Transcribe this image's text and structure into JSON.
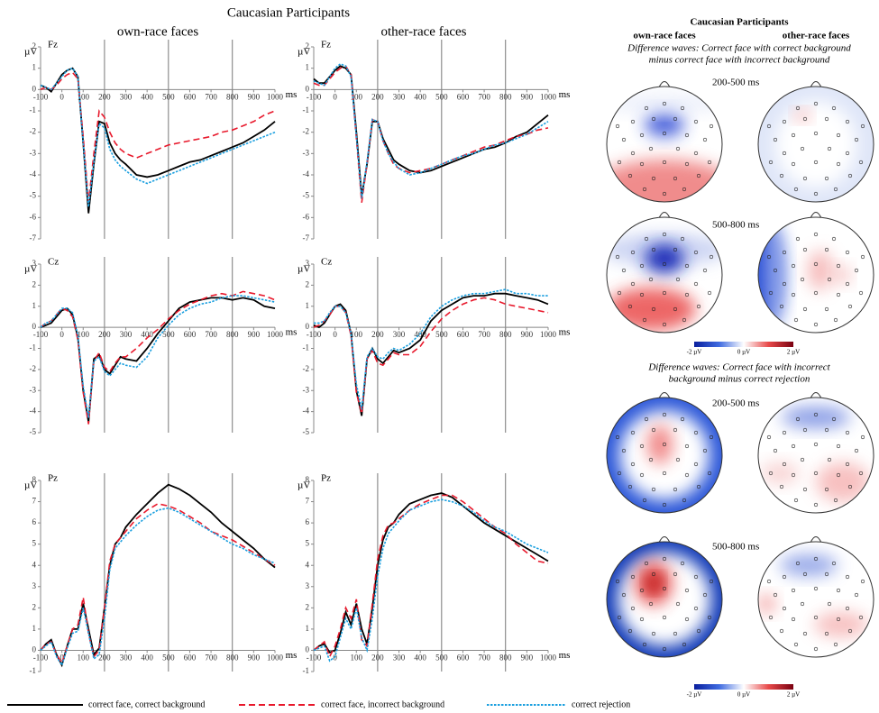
{
  "figure_title": "Caucasian Participants",
  "columns": [
    "own-race faces",
    "other-race faces"
  ],
  "chart_data": [
    {
      "type": "line",
      "title": "Fz",
      "ylabel": "µV",
      "xlabel": "ms",
      "xlim": [
        -100,
        1000
      ],
      "ylim": [
        -7,
        2
      ],
      "xticks": [
        -100,
        0,
        100,
        200,
        300,
        400,
        500,
        600,
        700,
        800,
        900,
        1000
      ],
      "yticks": [
        -7,
        -6,
        -5,
        -4,
        -3,
        -2,
        -1,
        0,
        1,
        2
      ],
      "vlines": [
        200,
        500,
        800
      ],
      "x": [
        -100,
        -75,
        -50,
        -25,
        0,
        25,
        50,
        75,
        100,
        125,
        150,
        175,
        200,
        225,
        250,
        275,
        300,
        350,
        400,
        450,
        500,
        550,
        600,
        650,
        700,
        750,
        800,
        850,
        900,
        950,
        1000
      ],
      "series": [
        {
          "name": "correct face, correct background",
          "color": "#000000",
          "dash": "solid",
          "values": [
            0.2,
            0.1,
            -0.1,
            0.3,
            0.7,
            0.9,
            1.0,
            0.6,
            -2.5,
            -5.8,
            -3.5,
            -1.5,
            -1.6,
            -2.5,
            -3.0,
            -3.3,
            -3.5,
            -4.0,
            -4.1,
            -4.0,
            -3.8,
            -3.6,
            -3.4,
            -3.3,
            -3.1,
            -2.9,
            -2.7,
            -2.5,
            -2.2,
            -1.9,
            -1.5
          ]
        },
        {
          "name": "correct face, incorrect background",
          "color": "#e8192c",
          "dash": "dashed",
          "values": [
            0.0,
            0.1,
            0.0,
            0.2,
            0.5,
            0.7,
            0.8,
            0.5,
            -2.2,
            -5.3,
            -3.0,
            -1.0,
            -1.3,
            -2.0,
            -2.5,
            -2.8,
            -3.0,
            -3.2,
            -3.0,
            -2.8,
            -2.6,
            -2.5,
            -2.4,
            -2.3,
            -2.2,
            -2.0,
            -1.9,
            -1.7,
            -1.5,
            -1.2,
            -1.0
          ]
        },
        {
          "name": "correct rejection",
          "color": "#1a9fdf",
          "dash": "dotted",
          "values": [
            0.2,
            0.1,
            0.0,
            0.3,
            0.6,
            0.9,
            1.0,
            0.6,
            -2.5,
            -5.5,
            -3.4,
            -1.6,
            -1.8,
            -2.8,
            -3.3,
            -3.6,
            -3.8,
            -4.2,
            -4.4,
            -4.2,
            -4.0,
            -3.8,
            -3.6,
            -3.4,
            -3.2,
            -3.0,
            -2.8,
            -2.6,
            -2.4,
            -2.2,
            -2.0
          ]
        }
      ]
    },
    {
      "type": "line",
      "title": "Fz",
      "ylabel": "µV",
      "xlabel": "ms",
      "xlim": [
        -100,
        1000
      ],
      "ylim": [
        -7,
        2
      ],
      "xticks": [
        -100,
        0,
        100,
        200,
        300,
        400,
        500,
        600,
        700,
        800,
        900,
        1000
      ],
      "yticks": [
        -7,
        -6,
        -5,
        -4,
        -3,
        -2,
        -1,
        0,
        1,
        2
      ],
      "vlines": [
        200,
        500,
        800
      ],
      "x": [
        -100,
        -75,
        -50,
        -25,
        0,
        25,
        50,
        75,
        100,
        125,
        150,
        175,
        200,
        225,
        250,
        275,
        300,
        350,
        400,
        450,
        500,
        550,
        600,
        650,
        700,
        750,
        800,
        850,
        900,
        950,
        1000
      ],
      "series": [
        {
          "name": "correct face, correct background",
          "color": "#000000",
          "dash": "solid",
          "values": [
            0.5,
            0.3,
            0.3,
            0.6,
            0.9,
            1.1,
            1.0,
            0.7,
            -2.0,
            -5.0,
            -3.5,
            -1.5,
            -1.5,
            -2.3,
            -2.8,
            -3.3,
            -3.5,
            -3.8,
            -3.9,
            -3.8,
            -3.6,
            -3.4,
            -3.2,
            -3.0,
            -2.8,
            -2.7,
            -2.5,
            -2.2,
            -2.0,
            -1.6,
            -1.2
          ]
        },
        {
          "name": "correct face, incorrect background",
          "color": "#e8192c",
          "dash": "dashed",
          "values": [
            0.3,
            0.2,
            0.2,
            0.5,
            0.8,
            1.0,
            1.1,
            0.7,
            -2.3,
            -5.3,
            -3.5,
            -1.4,
            -1.5,
            -2.4,
            -3.0,
            -3.5,
            -3.7,
            -3.9,
            -3.8,
            -3.7,
            -3.5,
            -3.3,
            -3.1,
            -2.9,
            -2.7,
            -2.6,
            -2.4,
            -2.2,
            -2.1,
            -1.9,
            -1.8
          ]
        },
        {
          "name": "correct rejection",
          "color": "#1a9fdf",
          "dash": "dotted",
          "values": [
            0.4,
            0.3,
            0.2,
            0.6,
            1.0,
            1.2,
            1.1,
            0.6,
            -2.2,
            -5.1,
            -3.4,
            -1.4,
            -1.5,
            -2.4,
            -3.0,
            -3.4,
            -3.7,
            -4.0,
            -3.9,
            -3.7,
            -3.5,
            -3.3,
            -3.1,
            -3.0,
            -2.8,
            -2.6,
            -2.5,
            -2.3,
            -2.1,
            -1.8,
            -1.5
          ]
        }
      ]
    },
    {
      "type": "line",
      "title": "Cz",
      "ylabel": "µV",
      "xlabel": "ms",
      "xlim": [
        -100,
        1000
      ],
      "ylim": [
        -5,
        3
      ],
      "xticks": [
        -100,
        0,
        100,
        200,
        300,
        400,
        500,
        600,
        700,
        800,
        900,
        1000
      ],
      "yticks": [
        -5,
        -4,
        -3,
        -2,
        -1,
        0,
        1,
        2,
        3
      ],
      "vlines": [
        200,
        500,
        800
      ],
      "x": [
        -100,
        -75,
        -50,
        -25,
        0,
        25,
        50,
        75,
        100,
        125,
        150,
        175,
        200,
        225,
        250,
        275,
        300,
        350,
        400,
        450,
        500,
        550,
        600,
        650,
        700,
        750,
        800,
        850,
        900,
        950,
        1000
      ],
      "series": [
        {
          "name": "correct face, correct background",
          "color": "#000000",
          "dash": "solid",
          "values": [
            0.0,
            0.1,
            0.2,
            0.5,
            0.8,
            0.9,
            0.6,
            -0.5,
            -3.0,
            -4.5,
            -1.5,
            -1.3,
            -2.0,
            -2.2,
            -1.8,
            -1.4,
            -1.5,
            -1.6,
            -1.0,
            -0.3,
            0.3,
            0.9,
            1.2,
            1.3,
            1.4,
            1.4,
            1.3,
            1.4,
            1.3,
            1.0,
            0.9
          ]
        },
        {
          "name": "correct face, incorrect background",
          "color": "#e8192c",
          "dash": "dashed",
          "values": [
            0.0,
            0.2,
            0.3,
            0.6,
            0.9,
            0.8,
            0.5,
            -0.6,
            -3.1,
            -4.6,
            -1.6,
            -1.2,
            -1.9,
            -2.1,
            -1.7,
            -1.4,
            -1.4,
            -1.0,
            -0.5,
            -0.1,
            0.4,
            0.8,
            1.1,
            1.3,
            1.5,
            1.6,
            1.5,
            1.7,
            1.6,
            1.5,
            1.3
          ]
        },
        {
          "name": "correct rejection",
          "color": "#1a9fdf",
          "dash": "dotted",
          "values": [
            0.0,
            0.2,
            0.3,
            0.6,
            0.9,
            0.9,
            0.7,
            -0.4,
            -2.8,
            -4.3,
            -1.6,
            -1.4,
            -2.1,
            -2.3,
            -2.0,
            -1.7,
            -1.8,
            -1.9,
            -1.4,
            -0.5,
            0.1,
            0.6,
            0.9,
            1.1,
            1.2,
            1.4,
            1.5,
            1.5,
            1.4,
            1.3,
            1.2
          ]
        }
      ]
    },
    {
      "type": "line",
      "title": "Cz",
      "ylabel": "µV",
      "xlabel": "ms",
      "xlim": [
        -100,
        1000
      ],
      "ylim": [
        -5,
        3
      ],
      "xticks": [
        -100,
        0,
        100,
        200,
        300,
        400,
        500,
        600,
        700,
        800,
        900,
        1000
      ],
      "yticks": [
        -5,
        -4,
        -3,
        -2,
        -1,
        0,
        1,
        2,
        3
      ],
      "vlines": [
        200,
        500,
        800
      ],
      "x": [
        -100,
        -75,
        -50,
        -25,
        0,
        25,
        50,
        75,
        100,
        125,
        150,
        175,
        200,
        225,
        250,
        275,
        300,
        350,
        400,
        450,
        500,
        550,
        600,
        650,
        700,
        750,
        800,
        850,
        900,
        950,
        1000
      ],
      "series": [
        {
          "name": "correct face, correct background",
          "color": "#000000",
          "dash": "solid",
          "values": [
            0.1,
            0.0,
            0.2,
            0.6,
            1.0,
            1.1,
            0.8,
            -0.3,
            -3.0,
            -4.2,
            -1.5,
            -1.0,
            -1.5,
            -1.7,
            -1.4,
            -1.1,
            -1.2,
            -1.0,
            -0.6,
            0.3,
            0.8,
            1.1,
            1.4,
            1.5,
            1.5,
            1.6,
            1.6,
            1.5,
            1.4,
            1.3,
            1.1
          ]
        },
        {
          "name": "correct face, incorrect background",
          "color": "#e8192c",
          "dash": "dashed",
          "values": [
            0.0,
            0.1,
            0.3,
            0.6,
            1.0,
            1.0,
            0.7,
            -0.4,
            -3.1,
            -4.1,
            -1.5,
            -1.1,
            -1.7,
            -1.8,
            -1.5,
            -1.2,
            -1.3,
            -1.3,
            -0.9,
            -0.2,
            0.4,
            0.8,
            1.1,
            1.3,
            1.4,
            1.3,
            1.1,
            1.0,
            0.9,
            0.8,
            0.7
          ]
        },
        {
          "name": "correct rejection",
          "color": "#1a9fdf",
          "dash": "dotted",
          "values": [
            0.2,
            0.2,
            0.3,
            0.7,
            1.0,
            1.0,
            0.7,
            -0.3,
            -2.7,
            -3.9,
            -1.4,
            -1.0,
            -1.4,
            -1.5,
            -1.2,
            -1.0,
            -1.1,
            -0.8,
            -0.3,
            0.5,
            1.0,
            1.3,
            1.5,
            1.6,
            1.6,
            1.7,
            1.8,
            1.6,
            1.6,
            1.5,
            1.5
          ]
        }
      ]
    },
    {
      "type": "line",
      "title": "Pz",
      "ylabel": "µV",
      "xlabel": "ms",
      "xlim": [
        -100,
        1000
      ],
      "ylim": [
        -1,
        8
      ],
      "xticks": [
        -100,
        0,
        100,
        200,
        300,
        400,
        500,
        600,
        700,
        800,
        900,
        1000
      ],
      "yticks": [
        -1,
        0,
        1,
        2,
        3,
        4,
        5,
        6,
        7,
        8
      ],
      "vlines": [
        200,
        500,
        800
      ],
      "x": [
        -100,
        -75,
        -50,
        -25,
        0,
        25,
        50,
        75,
        100,
        125,
        150,
        175,
        200,
        225,
        250,
        275,
        300,
        350,
        400,
        450,
        500,
        550,
        600,
        650,
        700,
        750,
        800,
        850,
        900,
        950,
        1000
      ],
      "series": [
        {
          "name": "correct face, correct background",
          "color": "#000000",
          "dash": "solid",
          "values": [
            0.0,
            0.3,
            0.5,
            -0.2,
            -0.7,
            0.2,
            1.0,
            1.0,
            2.2,
            1.0,
            -0.2,
            0.1,
            2.0,
            4.0,
            5.0,
            5.3,
            5.8,
            6.4,
            6.9,
            7.4,
            7.8,
            7.6,
            7.3,
            6.9,
            6.5,
            6.0,
            5.6,
            5.2,
            4.8,
            4.3,
            3.9
          ]
        },
        {
          "name": "correct face, incorrect background",
          "color": "#e8192c",
          "dash": "dashed",
          "values": [
            0.0,
            0.3,
            0.4,
            -0.2,
            -0.6,
            0.2,
            1.0,
            1.2,
            2.5,
            0.8,
            -0.3,
            0.0,
            2.0,
            4.2,
            5.0,
            5.3,
            5.6,
            6.2,
            6.6,
            6.9,
            6.8,
            6.6,
            6.3,
            6.0,
            5.6,
            5.4,
            5.2,
            4.9,
            4.6,
            4.3,
            4.0
          ]
        },
        {
          "name": "correct rejection",
          "color": "#1a9fdf",
          "dash": "dotted",
          "values": [
            0.0,
            0.2,
            0.4,
            -0.3,
            -0.7,
            0.1,
            0.8,
            0.9,
            2.0,
            0.8,
            -0.4,
            -0.2,
            1.5,
            3.8,
            4.8,
            5.1,
            5.4,
            5.9,
            6.3,
            6.6,
            6.7,
            6.5,
            6.2,
            5.9,
            5.6,
            5.3,
            5.0,
            4.8,
            4.5,
            4.3,
            4.1
          ]
        }
      ]
    },
    {
      "type": "line",
      "title": "Pz",
      "ylabel": "µV",
      "xlabel": "ms",
      "xlim": [
        -100,
        1000
      ],
      "ylim": [
        -1,
        8
      ],
      "xticks": [
        -100,
        0,
        100,
        200,
        300,
        400,
        500,
        600,
        700,
        800,
        900,
        1000
      ],
      "yticks": [
        -1,
        0,
        1,
        2,
        3,
        4,
        5,
        6,
        7,
        8
      ],
      "vlines": [
        200,
        500,
        800
      ],
      "x": [
        -100,
        -75,
        -50,
        -25,
        0,
        25,
        50,
        75,
        100,
        125,
        150,
        175,
        200,
        225,
        250,
        275,
        300,
        350,
        400,
        450,
        500,
        550,
        600,
        650,
        700,
        750,
        800,
        850,
        900,
        950,
        1000
      ],
      "series": [
        {
          "name": "correct face, correct background",
          "color": "#000000",
          "dash": "solid",
          "values": [
            0.0,
            0.2,
            0.3,
            -0.1,
            0.0,
            0.8,
            1.8,
            1.2,
            2.2,
            1.0,
            0.3,
            2.0,
            4.0,
            5.2,
            5.8,
            6.0,
            6.4,
            6.9,
            7.1,
            7.3,
            7.4,
            7.2,
            6.8,
            6.4,
            6.0,
            5.7,
            5.4,
            5.1,
            4.8,
            4.5,
            4.2
          ]
        },
        {
          "name": "correct face, incorrect background",
          "color": "#e8192c",
          "dash": "dashed",
          "values": [
            0.0,
            0.2,
            0.4,
            -0.3,
            0.2,
            1.0,
            2.0,
            1.5,
            2.4,
            0.5,
            0.2,
            2.2,
            4.3,
            5.4,
            5.9,
            6.0,
            6.2,
            6.6,
            6.9,
            7.1,
            7.3,
            7.3,
            7.0,
            6.6,
            6.2,
            5.8,
            5.5,
            5.0,
            4.6,
            4.2,
            4.1
          ]
        },
        {
          "name": "correct rejection",
          "color": "#1a9fdf",
          "dash": "dotted",
          "values": [
            0.0,
            0.1,
            0.2,
            -0.5,
            -0.3,
            0.6,
            1.5,
            1.0,
            2.0,
            0.6,
            0.0,
            1.5,
            3.5,
            4.8,
            5.5,
            5.8,
            6.1,
            6.6,
            6.8,
            7.0,
            7.1,
            7.0,
            6.8,
            6.5,
            6.1,
            5.8,
            5.6,
            5.3,
            5.0,
            4.8,
            4.6
          ]
        }
      ]
    }
  ],
  "topomaps": {
    "title": "Caucasian Participants",
    "columns": [
      "own-race faces",
      "other-race faces"
    ],
    "sections": [
      {
        "heading": [
          "Difference waves: Correct face with correct background",
          "minus correct face with incorrect background"
        ],
        "windows": [
          "200-500 ms",
          "500-800 ms"
        ],
        "colorbar": [
          "-2 µV",
          "0 µV",
          "2 µV"
        ]
      },
      {
        "heading": [
          "Difference waves: Correct face with incorrect",
          "background minus correct rejection"
        ],
        "windows": [
          "200-500 ms",
          "500-800 ms"
        ],
        "colorbar": [
          "-2 µV",
          "0 µV",
          "2 µV"
        ]
      }
    ]
  }
}
